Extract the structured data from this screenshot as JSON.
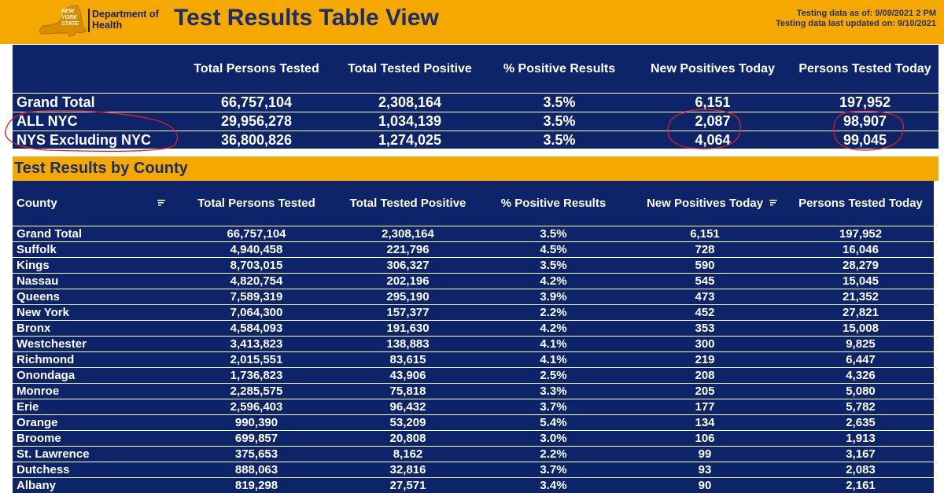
{
  "header": {
    "logo_state_text": [
      "NEW",
      "YORK",
      "STATE"
    ],
    "logo_dept_line1": "Department of",
    "logo_dept_line2": "Health",
    "title": "Test Results Table View",
    "testing_as_of": "Testing data as of: 9/09/2021 2 PM",
    "last_updated": "Testing data last updated on: 9/10/2021",
    "colors": {
      "accent": "#f4a800",
      "navy": "#0d2468",
      "title": "#1a2d6e"
    }
  },
  "summary": {
    "columns": [
      "",
      "Total Persons Tested",
      "Total Tested Positive",
      "% Positive Results",
      "New Positives Today",
      "Persons Tested Today"
    ],
    "rows": [
      [
        "Grand Total",
        "66,757,104",
        "2,308,164",
        "3.5%",
        "6,151",
        "197,952"
      ],
      [
        "ALL NYC",
        "29,956,278",
        "1,034,139",
        "3.5%",
        "2,087",
        "98,907"
      ],
      [
        "NYS Excluding NYC",
        "36,800,826",
        "1,274,025",
        "3.5%",
        "4,064",
        "99,045"
      ]
    ]
  },
  "county_section": {
    "title": "Test Results by County",
    "columns": [
      "County",
      "Total Persons Tested",
      "Total Tested Positive",
      "% Positive Results",
      "New Positives Today",
      "Persons Tested Today"
    ],
    "rows": [
      [
        "Grand Total",
        "66,757,104",
        "2,308,164",
        "3.5%",
        "6,151",
        "197,952"
      ],
      [
        "Suffolk",
        "4,940,458",
        "221,796",
        "4.5%",
        "728",
        "16,046"
      ],
      [
        "Kings",
        "8,703,015",
        "306,327",
        "3.5%",
        "590",
        "28,279"
      ],
      [
        "Nassau",
        "4,820,754",
        "202,196",
        "4.2%",
        "545",
        "15,045"
      ],
      [
        "Queens",
        "7,589,319",
        "295,190",
        "3.9%",
        "473",
        "21,352"
      ],
      [
        "New York",
        "7,064,300",
        "157,377",
        "2.2%",
        "452",
        "27,821"
      ],
      [
        "Bronx",
        "4,584,093",
        "191,630",
        "4.2%",
        "353",
        "15,008"
      ],
      [
        "Westchester",
        "3,413,823",
        "138,883",
        "4.1%",
        "300",
        "9,825"
      ],
      [
        "Richmond",
        "2,015,551",
        "83,615",
        "4.1%",
        "219",
        "6,447"
      ],
      [
        "Onondaga",
        "1,736,823",
        "43,906",
        "2.5%",
        "208",
        "4,326"
      ],
      [
        "Monroe",
        "2,285,575",
        "75,818",
        "3.3%",
        "205",
        "5,080"
      ],
      [
        "Erie",
        "2,596,403",
        "96,432",
        "3.7%",
        "177",
        "5,782"
      ],
      [
        "Orange",
        "990,390",
        "53,209",
        "5.4%",
        "134",
        "2,635"
      ],
      [
        "Broome",
        "699,857",
        "20,808",
        "3.0%",
        "106",
        "1,913"
      ],
      [
        "St. Lawrence",
        "375,653",
        "8,162",
        "2.2%",
        "99",
        "3,167"
      ],
      [
        "Dutchess",
        "888,063",
        "32,816",
        "3.7%",
        "93",
        "2,083"
      ],
      [
        "Albany",
        "819,298",
        "27,571",
        "3.4%",
        "90",
        "2,161"
      ]
    ]
  },
  "icons": {
    "sort": "sort-icon",
    "logo": "nys-map-logo-icon"
  },
  "annotation_color": "#d8222b"
}
